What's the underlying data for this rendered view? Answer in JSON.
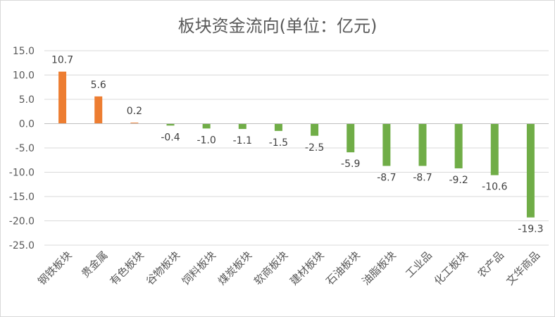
{
  "chart_data": {
    "type": "bar",
    "title": "板块资金流向(单位：亿元)",
    "xlabel": "",
    "ylabel": "",
    "ylim": [
      -25,
      15
    ],
    "yticks": [
      "15.0",
      "10.0",
      "5.0",
      "0.0",
      "-5.0",
      "-10.0",
      "-15.0",
      "-20.0",
      "-25.0"
    ],
    "ytick_values": [
      15,
      10,
      5,
      0,
      -5,
      -10,
      -15,
      -20,
      -25
    ],
    "grid": true,
    "legend": "none",
    "categories": [
      "钢铁板块",
      "贵金属",
      "有色板块",
      "谷物板块",
      "饲料板块",
      "煤炭板块",
      "软商板块",
      "建材板块",
      "石油板块",
      "油脂板块",
      "工业品",
      "化工板块",
      "农产品",
      "文华商品"
    ],
    "values": [
      10.7,
      5.6,
      0.2,
      -0.4,
      -1.0,
      -1.1,
      -1.5,
      -2.5,
      -5.9,
      -8.7,
      -8.7,
      -9.2,
      -10.6,
      -19.3
    ],
    "value_labels": [
      "10.7",
      "5.6",
      "0.2",
      "-0.4",
      "-1.0",
      "-1.1",
      "-1.5",
      "-2.5",
      "-5.9",
      "-8.7",
      "-8.7",
      "-9.2",
      "-10.6",
      "-19.3"
    ],
    "colors": {
      "positive": "#ed7d31",
      "negative": "#70ad47",
      "grid": "#d9d9d9",
      "axis": "#bfbfbf",
      "text": "#595959"
    }
  }
}
